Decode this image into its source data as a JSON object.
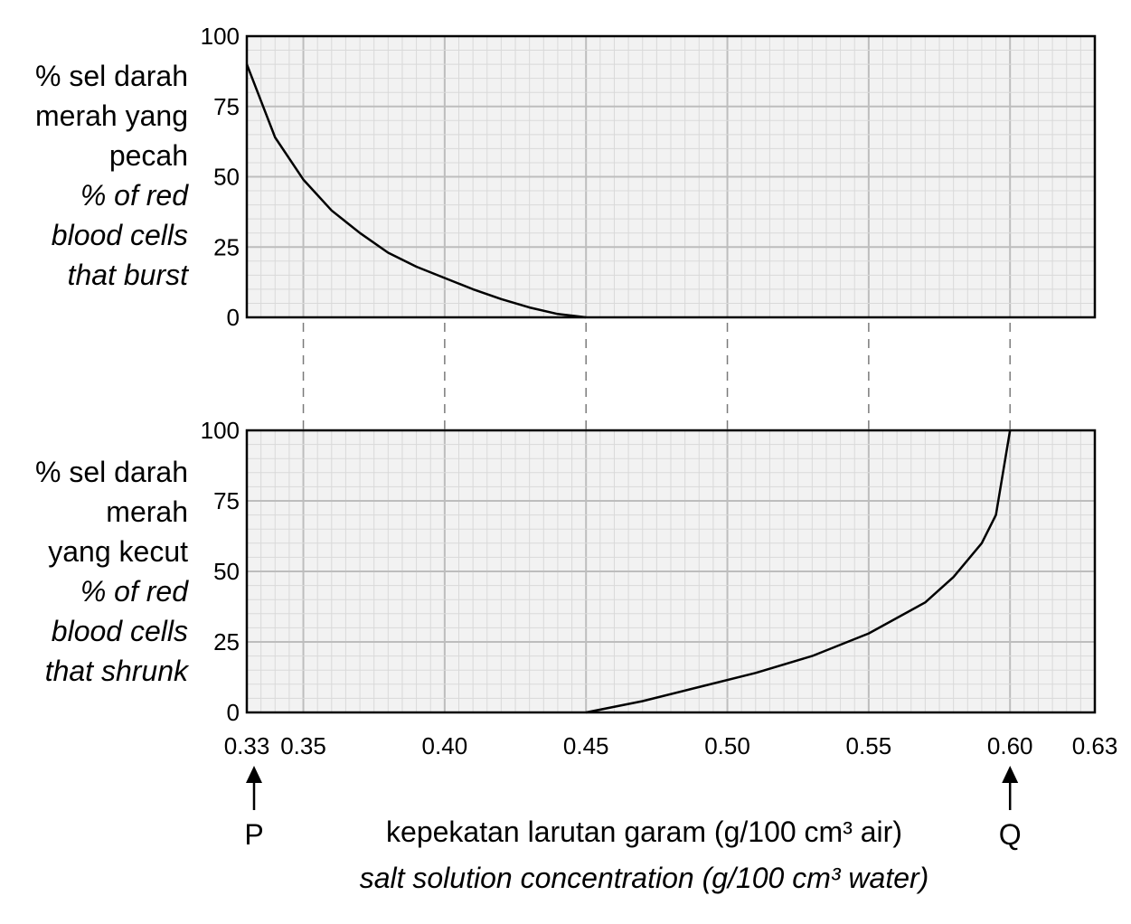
{
  "chart_data": [
    {
      "type": "line",
      "title": "",
      "ylabel_lines": [
        "% sel darah",
        "merah yang",
        "pecah"
      ],
      "ylabel_en_lines": [
        "% of red",
        "blood cells",
        "that burst"
      ],
      "xlim": [
        0.33,
        0.63
      ],
      "ylim": [
        0,
        100
      ],
      "yticks": [
        "0",
        "25",
        "50",
        "75",
        "100"
      ],
      "grid": true,
      "series": [
        {
          "x": [
            0.33,
            0.34,
            0.35,
            0.36,
            0.37,
            0.38,
            0.39,
            0.4,
            0.41,
            0.42,
            0.43,
            0.44,
            0.45
          ],
          "y": [
            90,
            64,
            49,
            38,
            30,
            23,
            18,
            14,
            10,
            6.5,
            3.5,
            1.2,
            0
          ]
        }
      ]
    },
    {
      "type": "line",
      "title": "",
      "ylabel_lines": [
        "% sel darah",
        "merah",
        "yang kecut"
      ],
      "ylabel_en_lines": [
        "% of red",
        "blood cells",
        "that shrunk"
      ],
      "xlim": [
        0.33,
        0.63
      ],
      "ylim": [
        0,
        100
      ],
      "yticks": [
        "0",
        "25",
        "50",
        "75",
        "100"
      ],
      "xticks": [
        "0.33",
        "0.35",
        "0.40",
        "0.45",
        "0.50",
        "0.55",
        "0.60",
        "0.63"
      ],
      "grid": true,
      "series": [
        {
          "x": [
            0.45,
            0.47,
            0.49,
            0.51,
            0.53,
            0.55,
            0.57,
            0.58,
            0.59,
            0.595,
            0.6
          ],
          "y": [
            0,
            4,
            9,
            14,
            20,
            28,
            39,
            48,
            60,
            70,
            100
          ]
        }
      ]
    }
  ],
  "markers": {
    "p_label": "P",
    "q_label": "Q",
    "p_x": 0.33,
    "q_x": 0.6
  },
  "xlabel": "kepekatan larutan garam (g/100 cm³ air)",
  "xlabel_en": "salt solution concentration (g/100 cm³ water)"
}
